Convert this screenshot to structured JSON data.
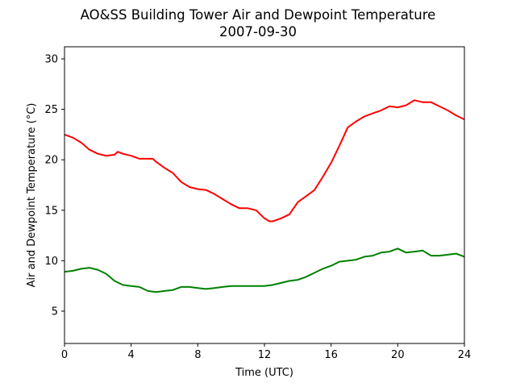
{
  "chart_data": {
    "type": "line",
    "title": "AO&SS Building Tower Air and Dewpoint Temperature",
    "subtitle": "2007-09-30",
    "xlabel": "Time (UTC)",
    "ylabel": "Air and Dewpoint Temperature (°C)",
    "xlim": [
      0,
      24
    ],
    "ylim": [
      1.8,
      31.2
    ],
    "xticks": [
      0,
      4,
      8,
      12,
      16,
      20,
      24
    ],
    "yticks": [
      5,
      10,
      15,
      20,
      25,
      30
    ],
    "grid": false,
    "series": [
      {
        "color": "#ff0000",
        "x": [
          0,
          0.5,
          1,
          1.5,
          2,
          2.5,
          3,
          3.2,
          3.5,
          4,
          4.5,
          5,
          5.3,
          5.5,
          6,
          6.5,
          7,
          7.5,
          8,
          8.5,
          9,
          9.5,
          10,
          10.5,
          11,
          11.5,
          12,
          12.3,
          12.5,
          13,
          13.5,
          14,
          14.5,
          15,
          15.5,
          16,
          16.5,
          17,
          17.5,
          18,
          18.5,
          19,
          19.5,
          20,
          20.5,
          21,
          21.5,
          22,
          22.5,
          23,
          23.5,
          24
        ],
        "y": [
          22.5,
          22.2,
          21.7,
          21.0,
          20.6,
          20.4,
          20.5,
          20.8,
          20.6,
          20.4,
          20.1,
          20.1,
          20.1,
          19.8,
          19.2,
          18.7,
          17.8,
          17.3,
          17.1,
          17.0,
          16.6,
          16.1,
          15.6,
          15.2,
          15.2,
          15.0,
          14.2,
          13.9,
          13.9,
          14.2,
          14.6,
          15.8,
          16.4,
          17.0,
          18.3,
          19.7,
          21.4,
          23.2,
          23.8,
          24.3,
          24.6,
          24.9,
          25.3,
          25.2,
          25.4,
          25.9,
          25.7,
          25.7,
          25.3,
          24.9,
          24.4,
          24.0
        ]
      },
      {
        "color": "#008000",
        "x": [
          0,
          0.5,
          1,
          1.5,
          2,
          2.5,
          3,
          3.5,
          4,
          4.5,
          5,
          5.5,
          6,
          6.5,
          7,
          7.5,
          8,
          8.5,
          9,
          9.5,
          10,
          10.5,
          11,
          11.5,
          12,
          12.5,
          13,
          13.5,
          14,
          14.5,
          15,
          15.5,
          16,
          16.5,
          17,
          17.5,
          18,
          18.5,
          19,
          19.5,
          20,
          20.5,
          21,
          21.5,
          22,
          22.5,
          23,
          23.5,
          24
        ],
        "y": [
          8.9,
          9.0,
          9.2,
          9.3,
          9.1,
          8.7,
          8.0,
          7.6,
          7.5,
          7.4,
          7.0,
          6.9,
          7.0,
          7.1,
          7.4,
          7.4,
          7.3,
          7.2,
          7.3,
          7.4,
          7.5,
          7.5,
          7.5,
          7.5,
          7.5,
          7.6,
          7.8,
          8.0,
          8.1,
          8.4,
          8.8,
          9.2,
          9.5,
          9.9,
          10.0,
          10.1,
          10.4,
          10.5,
          10.8,
          10.9,
          11.2,
          10.8,
          10.9,
          11.0,
          10.5,
          10.5,
          10.6,
          10.7,
          10.4
        ]
      }
    ]
  }
}
